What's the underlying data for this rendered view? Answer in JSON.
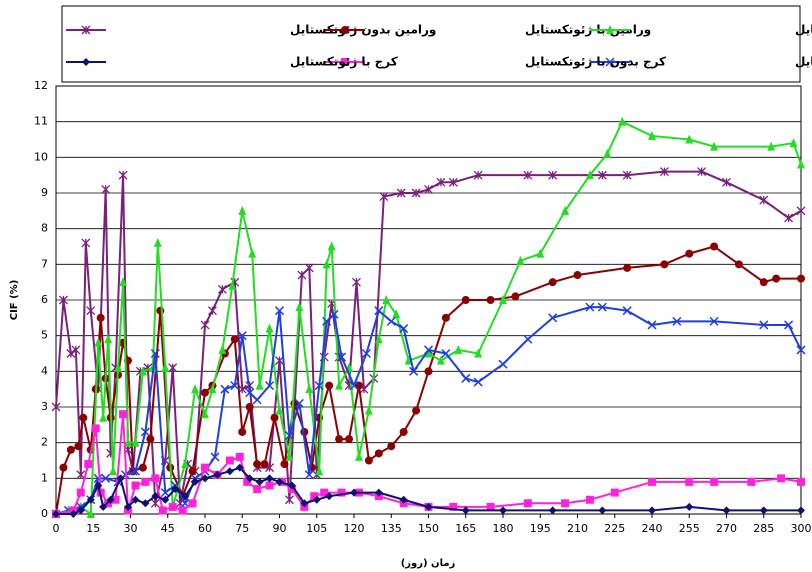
{
  "chart_data": {
    "type": "line",
    "xlabel": "زمان (روز)",
    "ylabel": "CIF (%)",
    "xlim": [
      0,
      300
    ],
    "xticks": [
      0,
      15,
      30,
      45,
      60,
      75,
      90,
      105,
      120,
      135,
      150,
      165,
      180,
      195,
      210,
      225,
      240,
      255,
      270,
      285,
      300
    ],
    "ylim": [
      0,
      12
    ],
    "yticks": [
      0,
      1,
      2,
      3,
      4,
      5,
      6,
      7,
      8,
      9,
      10,
      11,
      12
    ],
    "grid": true,
    "series": [
      {
        "name": "ورامین بدون ژئوتکستایل",
        "color": "#7b1f7b",
        "marker": "star",
        "x": [
          0,
          3,
          6,
          8,
          10,
          12,
          14,
          17,
          20,
          22,
          24,
          27,
          29,
          31,
          34,
          37,
          40,
          44,
          47,
          50,
          53,
          56,
          60,
          63,
          67,
          72,
          75,
          78,
          81,
          86,
          90,
          94,
          99,
          102,
          105,
          108,
          111,
          114,
          118,
          121,
          124,
          128,
          132,
          139,
          145,
          150,
          155,
          160,
          170,
          190,
          200,
          220,
          230,
          245,
          260,
          270,
          285,
          295,
          300
        ],
        "values": [
          3,
          6,
          4.5,
          4.6,
          1.1,
          7.6,
          5.7,
          3.5,
          9.1,
          1.7,
          4.1,
          9.5,
          1.8,
          1.2,
          4,
          4.1,
          0.3,
          1.5,
          4.1,
          0.3,
          1.4,
          1.2,
          5.3,
          5.7,
          6.3,
          6.5,
          3.5,
          3.6,
          1.3,
          1.3,
          4.3,
          0.4,
          6.7,
          6.9,
          1.1,
          4.4,
          5.9,
          4.4,
          3.6,
          6.5,
          3.5,
          3.8,
          8.9,
          9,
          9,
          9.1,
          9.3,
          9.3,
          9.5,
          9.5,
          9.5,
          9.5,
          9.5,
          9.6,
          9.6,
          9.3,
          8.8,
          8.3,
          8.5
        ]
      },
      {
        "name": "ورامین با ژئوتکستایل",
        "color": "#8b0000",
        "marker": "circle",
        "x": [
          0,
          3,
          6,
          9,
          11,
          14,
          16,
          18,
          20,
          22,
          25,
          27,
          29,
          31,
          35,
          38,
          42,
          46,
          51,
          55,
          60,
          63,
          68,
          72,
          75,
          78,
          81,
          84,
          88,
          92,
          96,
          100,
          103,
          106,
          110,
          114,
          118,
          122,
          126,
          130,
          135,
          140,
          145,
          150,
          157,
          165,
          175,
          185,
          200,
          210,
          230,
          245,
          255,
          265,
          275,
          285,
          290,
          300
        ],
        "values": [
          0,
          1.3,
          1.8,
          1.9,
          2.7,
          1.8,
          3.5,
          5.5,
          3.8,
          2.7,
          3.9,
          4.8,
          4.3,
          1.2,
          1.3,
          2.1,
          5.7,
          1.3,
          0.5,
          1.2,
          3.4,
          3.6,
          4.5,
          4.9,
          2.3,
          3,
          1.4,
          1.4,
          2.7,
          1.4,
          3.1,
          2.3,
          1.3,
          2.7,
          3.6,
          2.1,
          2.1,
          3.6,
          1.5,
          1.7,
          1.9,
          2.3,
          2.9,
          4,
          5.5,
          6,
          6,
          6.1,
          6.5,
          6.7,
          6.9,
          7,
          7.3,
          7.5,
          7,
          6.5,
          6.6,
          6.6
        ]
      },
      {
        "name": "کهریزک بدون ژئوتکستایل",
        "color": "#22dd22",
        "marker": "triangle",
        "x": [
          0,
          5,
          10,
          14,
          17,
          19,
          21,
          23,
          25,
          27,
          29,
          32,
          35,
          39,
          41,
          44,
          47,
          52,
          56,
          60,
          63,
          67,
          71,
          75,
          79,
          82,
          86,
          90,
          94,
          98,
          102,
          106,
          109,
          111,
          114,
          118,
          122,
          126,
          130,
          133,
          137,
          142,
          150,
          155,
          162,
          170,
          180,
          187,
          195,
          205,
          215,
          222,
          228,
          240,
          255,
          265,
          288,
          297,
          300
        ],
        "values": [
          0,
          0.1,
          0.2,
          0,
          4.8,
          2.7,
          4.9,
          1.2,
          4.1,
          6.5,
          2,
          2,
          4,
          4.1,
          7.6,
          4.1,
          0.2,
          1.4,
          3.5,
          2.8,
          3.5,
          4.6,
          6.4,
          8.5,
          7.3,
          3.6,
          5.2,
          2.9,
          1.6,
          5.8,
          3.5,
          1.2,
          7,
          7.5,
          3.6,
          4.1,
          1.6,
          2.9,
          4.9,
          6,
          5.6,
          4.3,
          4.5,
          4.3,
          4.6,
          4.5,
          6,
          7.1,
          7.3,
          8.5,
          9.5,
          10.1,
          11,
          10.6,
          10.5,
          10.3,
          10.3,
          10.4,
          9.8
        ]
      },
      {
        "name": "کهریزک با ژئوتکستایل",
        "color": "#1f3fe0",
        "marker": "x",
        "x": [
          0,
          5,
          10,
          14,
          17,
          20,
          25,
          28,
          32,
          36,
          40,
          44,
          48,
          52,
          56,
          60,
          64,
          68,
          72,
          75,
          78,
          81,
          86,
          90,
          94,
          98,
          102,
          106,
          109,
          112,
          115,
          120,
          125,
          130,
          135,
          140,
          144,
          150,
          157,
          165,
          170,
          180,
          190,
          200,
          215,
          220,
          230,
          240,
          250,
          265,
          285,
          295,
          300
        ],
        "values": [
          0,
          0.1,
          0.2,
          0.4,
          1,
          1,
          0.9,
          1.1,
          1.2,
          2.3,
          4.5,
          0.6,
          0.8,
          0.3,
          1,
          1.2,
          1.6,
          3.5,
          3.6,
          5,
          3.4,
          3.2,
          3.6,
          5.7,
          2.2,
          3.1,
          1.1,
          3.6,
          5.4,
          5.6,
          4.4,
          3.6,
          4.5,
          5.7,
          5.4,
          5.2,
          4,
          4.6,
          4.5,
          3.8,
          3.7,
          4.2,
          4.9,
          5.5,
          5.8,
          5.8,
          5.7,
          5.3,
          5.4,
          5.4,
          5.3,
          5.3,
          4.6
        ]
      },
      {
        "name": "کرج بدون با ژئوتکستایل",
        "color": "#ff22dd",
        "marker": "square",
        "x": [
          0,
          7,
          10,
          13,
          16,
          18,
          21,
          24,
          27,
          29,
          32,
          36,
          40,
          43,
          47,
          51,
          55,
          60,
          65,
          70,
          74,
          77,
          81,
          86,
          91,
          95,
          100,
          104,
          108,
          115,
          122,
          130,
          140,
          150,
          160,
          175,
          190,
          205,
          215,
          225,
          240,
          255,
          265,
          280,
          292,
          300
        ],
        "values": [
          0,
          0.1,
          0.6,
          1.4,
          2.4,
          0.6,
          0.3,
          0.4,
          2.8,
          0.1,
          0.8,
          0.9,
          1,
          0.1,
          0.2,
          0.1,
          0.3,
          1.3,
          1.1,
          1.5,
          1.6,
          0.9,
          0.7,
          0.8,
          0.9,
          0.7,
          0.2,
          0.5,
          0.6,
          0.6,
          0.6,
          0.5,
          0.3,
          0.2,
          0.2,
          0.2,
          0.3,
          0.3,
          0.4,
          0.6,
          0.9,
          0.9,
          0.9,
          0.9,
          1,
          0.9
        ]
      },
      {
        "name": "کرج با ژئوتکستایل",
        "color": "#101070",
        "marker": "diamond",
        "x": [
          0,
          7,
          10,
          14,
          17,
          19,
          22,
          26,
          29,
          32,
          36,
          40,
          44,
          48,
          52,
          56,
          60,
          65,
          70,
          74,
          78,
          82,
          86,
          90,
          95,
          100,
          105,
          110,
          120,
          130,
          140,
          150,
          165,
          180,
          200,
          220,
          240,
          255,
          270,
          285,
          300
        ],
        "values": [
          0,
          0,
          0.1,
          0.4,
          0.8,
          0.2,
          0.4,
          1,
          0.2,
          0.4,
          0.3,
          0.5,
          0.4,
          0.7,
          0.5,
          0.9,
          1,
          1.1,
          1.2,
          1.3,
          1,
          0.9,
          1,
          0.9,
          0.8,
          0.3,
          0.4,
          0.5,
          0.6,
          0.6,
          0.4,
          0.2,
          0.1,
          0.1,
          0.1,
          0.1,
          0.1,
          0.2,
          0.1,
          0.1,
          0.1
        ]
      }
    ]
  }
}
